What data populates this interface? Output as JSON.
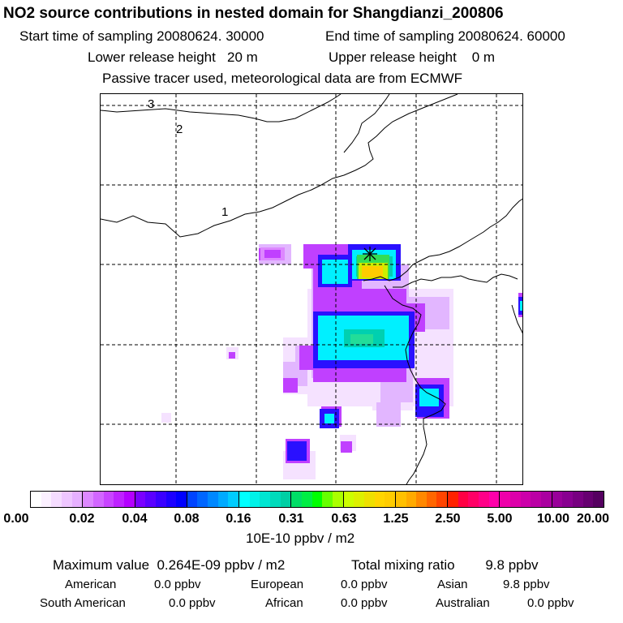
{
  "header": {
    "title": "NO2 source contributions in nested domain for Shangdianzi_200806",
    "start_label": "Start time of sampling 20080624. 30000",
    "end_label": "End time of sampling 20080624. 60000",
    "lower_release": "Lower release height   20 m",
    "upper_release": "Upper release height    0 m",
    "tracer_note": "Passive tracer used, meteorological data are from ECMWF"
  },
  "map": {
    "contour_labels": [
      "3",
      "2",
      "1"
    ],
    "receptor_marker": "star-marker",
    "colors": {
      "magenta": "#cc00ff",
      "lilac": "#eeccff",
      "pale": "#f7e8ff",
      "blue": "#1a1aff",
      "cyan": "#00ffee",
      "teal": "#00c8c8",
      "green": "#22dd66",
      "yellow": "#e6e600",
      "orange": "#ffaa00"
    }
  },
  "legend": {
    "ticks": [
      "0.00",
      "0.02",
      "0.04",
      "0.08",
      "0.16",
      "0.31",
      "0.63",
      "1.25",
      "2.50",
      "5.00",
      "10.00",
      "20.00"
    ],
    "unit": "10E-10 ppbv / m2",
    "segments": [
      [
        "#ffffff",
        "#fbf0ff",
        "#f5dcff",
        "#eec6ff",
        "#e6b0ff"
      ],
      [
        "#dd88ff",
        "#d266ff",
        "#c844ff",
        "#be22ff",
        "#b400ff"
      ],
      [
        "#7a00ff",
        "#5a00ff",
        "#3a00ff",
        "#1c00ff",
        "#0000ff"
      ],
      [
        "#0044ff",
        "#0066ff",
        "#0088ff",
        "#00aaff",
        "#00ccff"
      ],
      [
        "#00ffff",
        "#00f2e8",
        "#00e6d2",
        "#00dabb",
        "#00cfa4"
      ],
      [
        "#00dd66",
        "#00ee44",
        "#00ff00",
        "#66ff00",
        "#aaff00"
      ],
      [
        "#ccff00",
        "#ddf000",
        "#eee000",
        "#ffd500",
        "#ffcc00"
      ],
      [
        "#ffc000",
        "#ffaa00",
        "#ff8800",
        "#ff6600",
        "#ff4400"
      ],
      [
        "#ff2200",
        "#ff0044",
        "#ff0066",
        "#ff0088",
        "#ff00aa"
      ],
      [
        "#ee00aa",
        "#dd00aa",
        "#cc00aa",
        "#bb00a5",
        "#aa00a0"
      ],
      [
        "#99009a",
        "#880090",
        "#770080",
        "#660070",
        "#550060"
      ]
    ]
  },
  "footer": {
    "max_value": "Maximum value  0.264E-09 ppbv / m2",
    "total_mixing": "Total mixing ratio        9.8 ppbv",
    "american": "American",
    "american_val": "0.0 ppbv",
    "european": "European",
    "european_val": "0.0 ppbv",
    "asian": "Asian",
    "asian_val": "9.8 ppbv",
    "south_american": "South American",
    "south_american_val": "0.0 ppbv",
    "african": "African",
    "african_val": "0.0 ppbv",
    "australian": "Australian",
    "australian_val": "0.0 ppbv"
  }
}
